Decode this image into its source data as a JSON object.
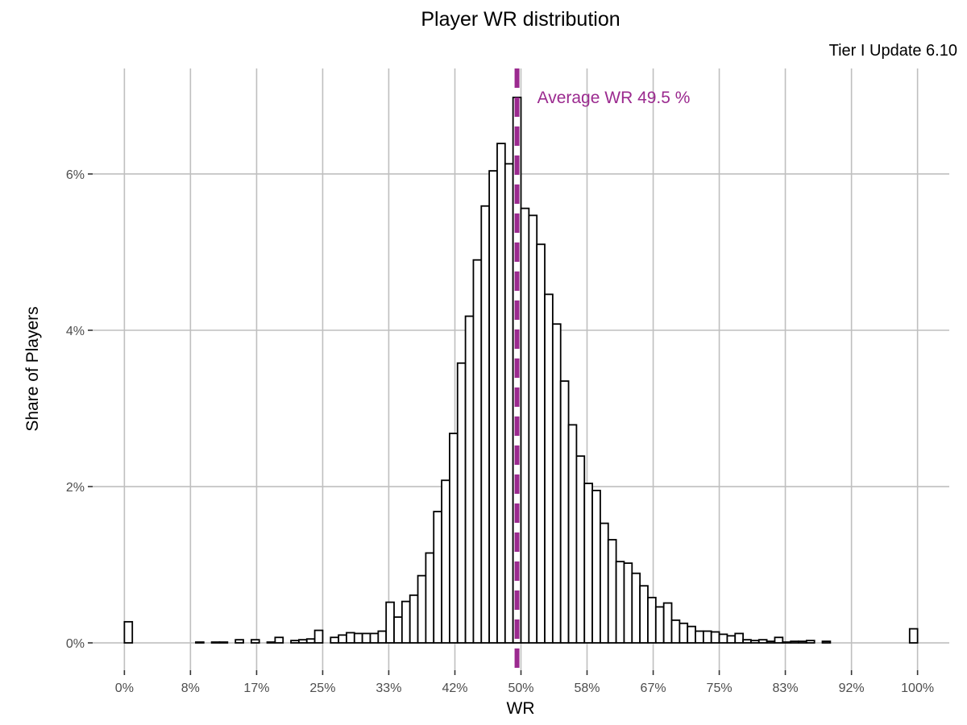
{
  "chart_data": {
    "type": "bar",
    "title": "Player WR distribution",
    "subtitle": "Tier I Update 6.10",
    "xlabel": "WR",
    "ylabel": "Share of Players",
    "xlim": [
      -0.04,
      1.04
    ],
    "ylim": [
      -0.0035,
      0.0735
    ],
    "x_ticks": [
      0,
      0.0833,
      0.1667,
      0.25,
      0.3333,
      0.4167,
      0.5,
      0.5833,
      0.6667,
      0.75,
      0.8333,
      0.9167,
      1.0
    ],
    "x_tick_labels": [
      "0%",
      "8%",
      "17%",
      "25%",
      "33%",
      "42%",
      "50%",
      "58%",
      "67%",
      "75%",
      "83%",
      "92%",
      "100%"
    ],
    "y_ticks": [
      0,
      0.02,
      0.04,
      0.06
    ],
    "y_tick_labels": [
      "0%",
      "2%",
      "4%",
      "6%"
    ],
    "grid": true,
    "bin_width": 0.01,
    "bins_x": [
      0.005,
      0.015,
      0.025,
      0.035,
      0.045,
      0.055,
      0.065,
      0.075,
      0.085,
      0.095,
      0.105,
      0.115,
      0.125,
      0.135,
      0.145,
      0.155,
      0.165,
      0.175,
      0.185,
      0.195,
      0.205,
      0.215,
      0.225,
      0.235,
      0.245,
      0.255,
      0.265,
      0.275,
      0.285,
      0.295,
      0.305,
      0.315,
      0.325,
      0.335,
      0.345,
      0.355,
      0.365,
      0.375,
      0.385,
      0.395,
      0.405,
      0.415,
      0.425,
      0.435,
      0.445,
      0.455,
      0.465,
      0.475,
      0.485,
      0.495,
      0.505,
      0.515,
      0.525,
      0.535,
      0.545,
      0.555,
      0.565,
      0.575,
      0.585,
      0.595,
      0.605,
      0.615,
      0.625,
      0.635,
      0.645,
      0.655,
      0.665,
      0.675,
      0.685,
      0.695,
      0.705,
      0.715,
      0.725,
      0.735,
      0.745,
      0.755,
      0.765,
      0.775,
      0.785,
      0.795,
      0.805,
      0.815,
      0.825,
      0.835,
      0.845,
      0.855,
      0.865,
      0.875,
      0.885,
      0.895,
      0.905,
      0.915,
      0.925,
      0.935,
      0.945,
      0.955,
      0.965,
      0.975,
      0.985,
      0.995
    ],
    "values": [
      0.0027,
      0,
      0,
      0,
      0,
      0,
      0,
      0,
      0,
      0.0001,
      0,
      0.0001,
      0.0001,
      0,
      0.0004,
      0,
      0.0004,
      0,
      0.0001,
      0.0007,
      0,
      0.0003,
      0.0004,
      0.0005,
      0.0016,
      0,
      0.0007,
      0.001,
      0.0013,
      0.0012,
      0.0012,
      0.0012,
      0.0015,
      0.0052,
      0.0033,
      0.0053,
      0.0061,
      0.0086,
      0.0115,
      0.0168,
      0.0208,
      0.0268,
      0.0358,
      0.0418,
      0.049,
      0.0559,
      0.0604,
      0.0639,
      0.0613,
      0.0698,
      0.0556,
      0.0547,
      0.051,
      0.0446,
      0.0408,
      0.0335,
      0.0279,
      0.0239,
      0.0204,
      0.0195,
      0.0153,
      0.0132,
      0.0104,
      0.0102,
      0.0089,
      0.0073,
      0.0058,
      0.0046,
      0.0051,
      0.0029,
      0.0025,
      0.0021,
      0.0015,
      0.0015,
      0.0014,
      0.0011,
      0.0009,
      0.0012,
      0.0004,
      0.0003,
      0.0004,
      0.0002,
      0.0007,
      0.0001,
      0.0002,
      0.0002,
      0.0003,
      0,
      0.0002,
      0,
      0,
      0,
      0,
      0,
      0,
      0,
      0,
      0,
      0,
      0.0018
    ],
    "annotation": {
      "text": "Average WR 49.5 %",
      "x": 0.495,
      "color": "#9b2a8f"
    },
    "colors": {
      "bar_fill": "#ffffff",
      "bar_stroke": "#000000",
      "grid": "#bfbfbf",
      "mean_line": "#9b2a8f"
    }
  }
}
